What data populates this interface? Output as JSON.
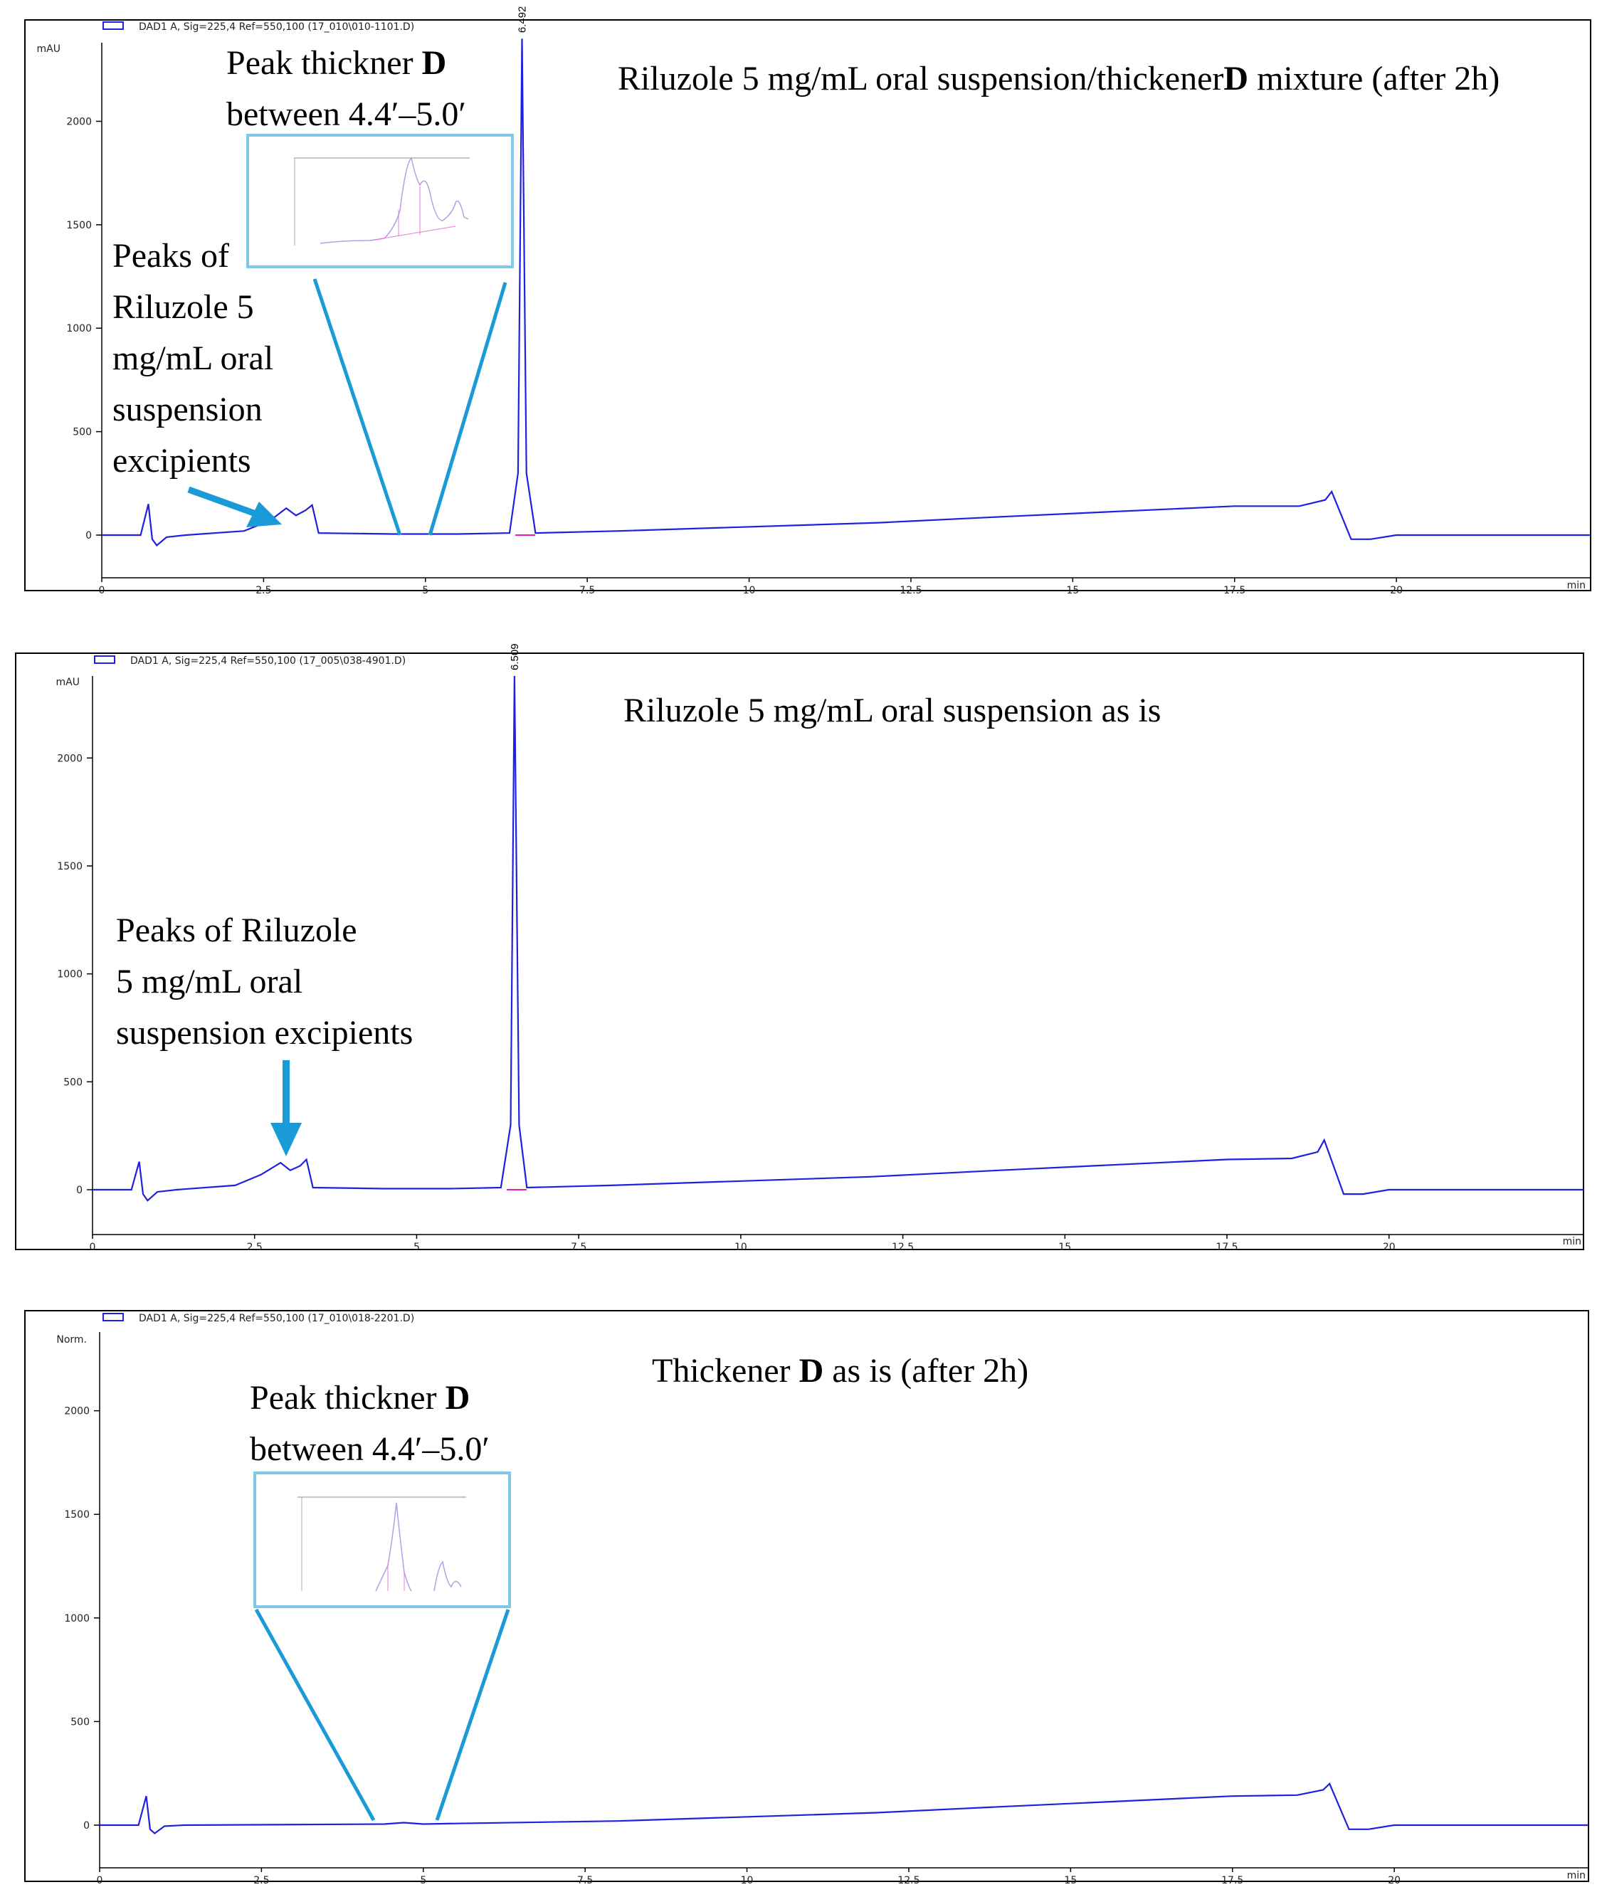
{
  "colors": {
    "trace": "#2020e0",
    "baseline": "#e020c0",
    "annotation": "#1a9ad6",
    "zoom_box": "#7fc8e8"
  },
  "chart_data": [
    {
      "type": "line",
      "legend_label": "DAD1 A, Sig=225,4 Ref=550,100 (17_010\\010-1101.D)",
      "y_unit": "mAU",
      "x_unit": "min",
      "xlim": [
        0,
        23
      ],
      "ylim": [
        -250,
        2550
      ],
      "x_ticks": [
        0,
        2.5,
        5,
        7.5,
        10,
        12.5,
        15,
        17.5,
        20
      ],
      "x_tick_labels": [
        "0",
        "2.5",
        "5",
        "7.5",
        "10",
        "12.5",
        "15",
        "17.5",
        "20"
      ],
      "y_ticks": [
        0,
        500,
        1000,
        1500,
        2000
      ],
      "y_tick_labels": [
        "0",
        "500",
        "1000",
        "1500",
        "2000"
      ],
      "peak_label": "6.492",
      "peak_label_x": 6.492,
      "series": [
        {
          "x": [
            0,
            0.6,
            0.72,
            0.78,
            0.85,
            1.0,
            1.3,
            2.2,
            2.6,
            2.85,
            3.0,
            3.15,
            3.25,
            3.35,
            4.5,
            5.5,
            6.3,
            6.43,
            6.492,
            6.56,
            6.7,
            8,
            12,
            14,
            17.5,
            18.5,
            18.9,
            19.0,
            19.3,
            19.6,
            20,
            21,
            23
          ],
          "y": [
            0,
            0,
            150,
            -20,
            -50,
            -10,
            0,
            20,
            70,
            130,
            95,
            120,
            145,
            10,
            5,
            5,
            10,
            300,
            2400,
            300,
            10,
            20,
            60,
            90,
            140,
            140,
            170,
            210,
            -20,
            -20,
            0,
            0,
            0
          ]
        }
      ],
      "annotations": [
        {
          "lines": [
            "Peak thickner |D|",
            "between 4.4′–5.0′"
          ]
        },
        {
          "lines": [
            "Riluzole 5 mg/mL oral suspension/thickener",
            "|D| mixture (after 2h)"
          ]
        },
        {
          "lines": [
            "Peaks of",
            "Riluzole 5",
            "mg/mL oral",
            "suspension",
            "excipients"
          ]
        }
      ]
    },
    {
      "type": "line",
      "legend_label": "DAD1 A, Sig=225,4 Ref=550,100 (17_005\\038-4901.D)",
      "y_unit": "mAU",
      "x_unit": "min",
      "xlim": [
        0,
        23
      ],
      "ylim": [
        -250,
        2550
      ],
      "x_ticks": [
        0,
        2.5,
        5,
        7.5,
        10,
        12.5,
        15,
        17.5,
        20
      ],
      "x_tick_labels": [
        "0",
        "2.5",
        "5",
        "7.5",
        "10",
        "12.5",
        "15",
        "17.5",
        "20"
      ],
      "y_ticks": [
        0,
        500,
        1000,
        1500,
        2000
      ],
      "y_tick_labels": [
        "0",
        "500",
        "1000",
        "1500",
        "2000"
      ],
      "peak_label": "6.509",
      "peak_label_x": 6.509,
      "series": [
        {
          "x": [
            0,
            0.6,
            0.72,
            0.78,
            0.85,
            1.0,
            1.3,
            2.2,
            2.6,
            2.9,
            3.05,
            3.2,
            3.3,
            3.4,
            4.5,
            5.5,
            6.3,
            6.45,
            6.509,
            6.58,
            6.7,
            8,
            12,
            14,
            17.5,
            18.5,
            18.9,
            19.0,
            19.3,
            19.6,
            20,
            21,
            23
          ],
          "y": [
            0,
            0,
            130,
            -20,
            -50,
            -10,
            0,
            20,
            70,
            125,
            90,
            110,
            140,
            10,
            5,
            5,
            10,
            300,
            2380,
            300,
            10,
            20,
            60,
            90,
            140,
            145,
            175,
            230,
            -20,
            -20,
            0,
            0,
            0
          ]
        }
      ],
      "annotations": [
        {
          "lines": [
            "Riluzole 5 mg/mL oral suspension as is"
          ]
        },
        {
          "lines": [
            "Peaks of Riluzole",
            "5 mg/mL oral",
            "suspension excipients"
          ]
        }
      ]
    },
    {
      "type": "line",
      "legend_label": "DAD1 A, Sig=225,4 Ref=550,100 (17_010\\018-2201.D)",
      "y_unit": "Norm.",
      "x_unit": "min",
      "xlim": [
        0,
        23
      ],
      "ylim": [
        -250,
        2550
      ],
      "x_ticks": [
        0,
        2.5,
        5,
        7.5,
        10,
        12.5,
        15,
        17.5,
        20
      ],
      "x_tick_labels": [
        "0",
        "2.5",
        "5",
        "7.5",
        "10",
        "12.5",
        "15",
        "17.5",
        "20"
      ],
      "y_ticks": [
        0,
        500,
        1000,
        1500,
        2000
      ],
      "y_tick_labels": [
        "0",
        "500",
        "1000",
        "1500",
        "2000"
      ],
      "peak_label": "",
      "series": [
        {
          "x": [
            0,
            0.6,
            0.72,
            0.78,
            0.85,
            1.0,
            1.3,
            4.4,
            4.7,
            5.0,
            5.5,
            8,
            12,
            14,
            17.5,
            18.5,
            18.9,
            19.0,
            19.3,
            19.6,
            20,
            21,
            23
          ],
          "y": [
            0,
            0,
            140,
            -20,
            -40,
            -5,
            0,
            5,
            12,
            5,
            8,
            20,
            60,
            90,
            140,
            145,
            170,
            200,
            -20,
            -20,
            0,
            0,
            0
          ]
        }
      ],
      "annotations": [
        {
          "lines": [
            "Thickener |D| as is (after 2h)"
          ]
        },
        {
          "lines": [
            "Peak thickner |D|",
            "between 4.4′–5.0′"
          ]
        }
      ]
    }
  ]
}
